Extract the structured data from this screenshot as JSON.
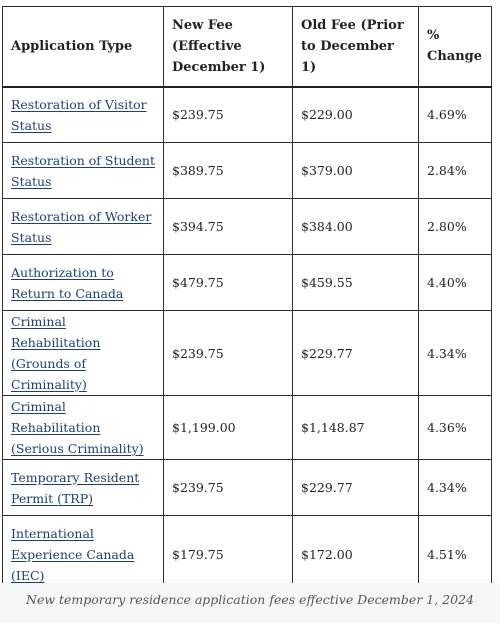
{
  "table": {
    "headers": {
      "application_type": "Application Type",
      "new_fee": "New Fee (Effective December 1)",
      "old_fee": "Old Fee (Prior to December 1)",
      "change": "% Change"
    },
    "rows": [
      {
        "application": "Restoration of Visitor Status",
        "new_fee": "$239.75",
        "old_fee": "$229.00",
        "change": "4.69%"
      },
      {
        "application": "Restoration of Student Status",
        "new_fee": "$389.75",
        "old_fee": "$379.00",
        "change": "2.84%"
      },
      {
        "application": "Restoration of Worker Status",
        "new_fee": "$394.75",
        "old_fee": "$384.00",
        "change": "2.80%"
      },
      {
        "application": "Authorization to Return to Canada",
        "new_fee": "$479.75",
        "old_fee": "$459.55",
        "change": "4.40%"
      },
      {
        "application": "Criminal Rehabilitation (Grounds of Criminality)",
        "new_fee": "$239.75",
        "old_fee": "$229.77",
        "change": "4.34%"
      },
      {
        "application": "Criminal Rehabilitation (Serious Criminality)",
        "new_fee": "$1,199.00",
        "old_fee": "$1,148.87",
        "change": "4.36%"
      },
      {
        "application": "Temporary Resident Permit (TRP)",
        "new_fee": "$239.75",
        "old_fee": "$229.77",
        "change": "4.34%"
      },
      {
        "application": "International Experience Canada (IEC)",
        "new_fee": "$179.75",
        "old_fee": "$172.00",
        "change": "4.51%"
      }
    ]
  },
  "caption": "New temporary residence application fees effective December 1, 2024"
}
